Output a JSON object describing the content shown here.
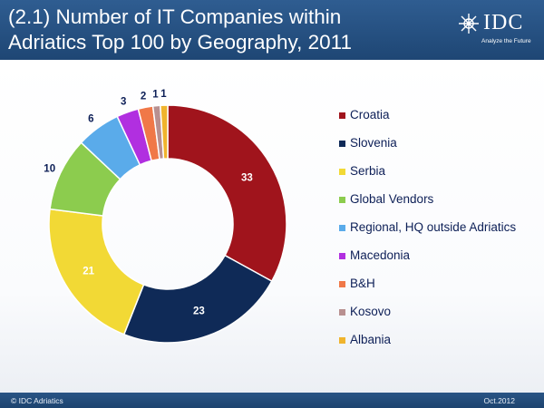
{
  "header": {
    "title_line1": "(2.1) Number of IT Companies within",
    "title_line2": "Adriatics Top 100 by Geography, 2011"
  },
  "logo": {
    "name": "IDC",
    "tagline": "Analyze the Future",
    "icon": "idc-globe-icon"
  },
  "footer": {
    "left": "© IDC Adriatics",
    "right": "Oct.2012"
  },
  "chart_data": {
    "type": "pie",
    "subtype": "donut",
    "title": "",
    "legend_position": "right",
    "categories": [
      "Croatia",
      "Slovenia",
      "Serbia",
      "Global Vendors",
      "Regional, HQ outside Adriatics",
      "Macedonia",
      "B&H",
      "Kosovo",
      "Albania"
    ],
    "values": [
      33,
      23,
      21,
      10,
      6,
      3,
      2,
      1,
      1
    ],
    "colors": [
      "#a0141c",
      "#0f2a57",
      "#f2d935",
      "#8ccc4e",
      "#5aabea",
      "#b12fe0",
      "#f07848",
      "#b89090",
      "#f0b42d"
    ]
  }
}
